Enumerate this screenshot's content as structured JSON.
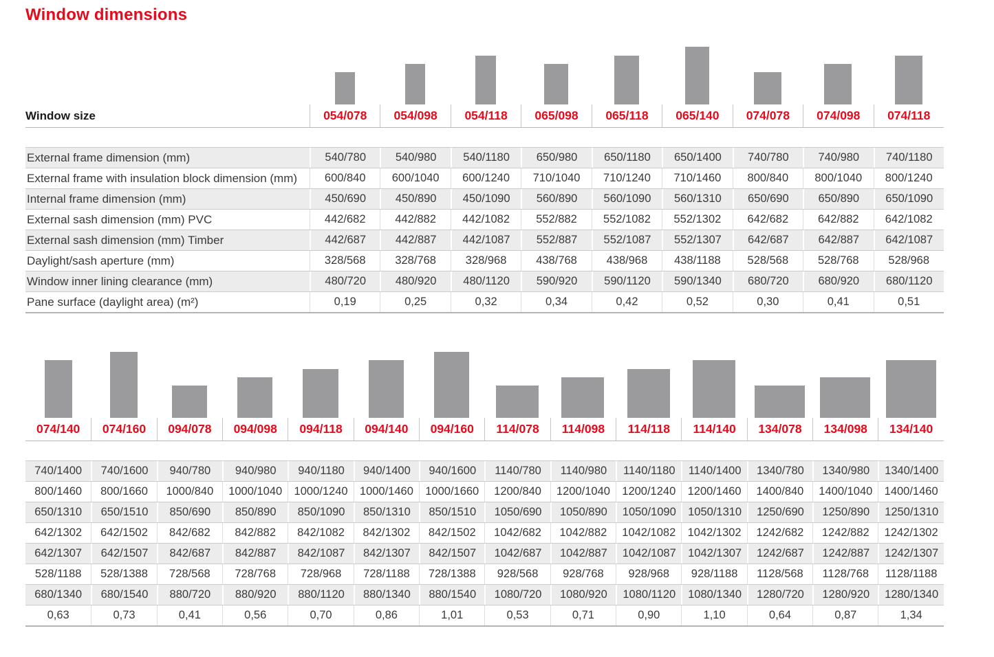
{
  "page_title": "Window dimensions",
  "colors": {
    "accent_red": "#e30b1c",
    "bar_gray": "#9b9b9d",
    "stripe_gray": "#ececec",
    "text_gray": "#3a3a3a",
    "line_gray": "#cbcbcb"
  },
  "row_labels": [
    "External frame dimension (mm)",
    "External frame with insulation block dimension (mm)",
    "Internal frame dimension (mm)",
    "External sash dimension (mm) PVC",
    "External sash dimension (mm) Timber",
    "Daylight/sash aperture (mm)",
    "Window inner lining clearance (mm)",
    "Pane surface (daylight area) (m²)"
  ],
  "sections": [
    {
      "name": "small-sizes",
      "header_label": "Window size",
      "columns": [
        "054/078",
        "054/098",
        "054/118",
        "065/098",
        "065/118",
        "065/140",
        "074/078",
        "074/098",
        "074/118"
      ],
      "rows": [
        [
          "540/780",
          "540/980",
          "540/1180",
          "650/980",
          "650/1180",
          "650/1400",
          "740/780",
          "740/980",
          "740/1180"
        ],
        [
          "600/840",
          "600/1040",
          "600/1240",
          "710/1040",
          "710/1240",
          "710/1460",
          "800/840",
          "800/1040",
          "800/1240"
        ],
        [
          "450/690",
          "450/890",
          "450/1090",
          "560/890",
          "560/1090",
          "560/1310",
          "650/690",
          "650/890",
          "650/1090"
        ],
        [
          "442/682",
          "442/882",
          "442/1082",
          "552/882",
          "552/1082",
          "552/1302",
          "642/682",
          "642/882",
          "642/1082"
        ],
        [
          "442/687",
          "442/887",
          "442/1087",
          "552/887",
          "552/1087",
          "552/1307",
          "642/687",
          "642/887",
          "642/1087"
        ],
        [
          "328/568",
          "328/768",
          "328/968",
          "438/768",
          "438/968",
          "438/1188",
          "528/568",
          "528/768",
          "528/968"
        ],
        [
          "480/720",
          "480/920",
          "480/1120",
          "590/920",
          "590/1120",
          "590/1340",
          "680/720",
          "680/920",
          "680/1120"
        ],
        [
          "0,19",
          "0,25",
          "0,32",
          "0,34",
          "0,42",
          "0,52",
          "0,30",
          "0,41",
          "0,51"
        ]
      ]
    },
    {
      "name": "large-sizes",
      "header_label": "",
      "columns": [
        "074/140",
        "074/160",
        "094/078",
        "094/098",
        "094/118",
        "094/140",
        "094/160",
        "114/078",
        "114/098",
        "114/118",
        "114/140",
        "134/078",
        "134/098",
        "134/140"
      ],
      "rows": [
        [
          "740/1400",
          "740/1600",
          "940/780",
          "940/980",
          "940/1180",
          "940/1400",
          "940/1600",
          "1140/780",
          "1140/980",
          "1140/1180",
          "1140/1400",
          "1340/780",
          "1340/980",
          "1340/1400"
        ],
        [
          "800/1460",
          "800/1660",
          "1000/840",
          "1000/1040",
          "1000/1240",
          "1000/1460",
          "1000/1660",
          "1200/840",
          "1200/1040",
          "1200/1240",
          "1200/1460",
          "1400/840",
          "1400/1040",
          "1400/1460"
        ],
        [
          "650/1310",
          "650/1510",
          "850/690",
          "850/890",
          "850/1090",
          "850/1310",
          "850/1510",
          "1050/690",
          "1050/890",
          "1050/1090",
          "1050/1310",
          "1250/690",
          "1250/890",
          "1250/1310"
        ],
        [
          "642/1302",
          "642/1502",
          "842/682",
          "842/882",
          "842/1082",
          "842/1302",
          "842/1502",
          "1042/682",
          "1042/882",
          "1042/1082",
          "1042/1302",
          "1242/682",
          "1242/882",
          "1242/1302"
        ],
        [
          "642/1307",
          "642/1507",
          "842/687",
          "842/887",
          "842/1087",
          "842/1307",
          "842/1507",
          "1042/687",
          "1042/887",
          "1042/1087",
          "1042/1307",
          "1242/687",
          "1242/887",
          "1242/1307"
        ],
        [
          "528/1188",
          "528/1388",
          "728/568",
          "728/768",
          "728/968",
          "728/1188",
          "728/1388",
          "928/568",
          "928/768",
          "928/968",
          "928/1188",
          "1128/568",
          "1128/768",
          "1128/1188"
        ],
        [
          "680/1340",
          "680/1540",
          "880/720",
          "880/920",
          "880/1120",
          "880/1340",
          "880/1540",
          "1080/720",
          "1080/920",
          "1080/1120",
          "1080/1340",
          "1280/720",
          "1280/920",
          "1280/1340"
        ],
        [
          "0,63",
          "0,73",
          "0,41",
          "0,56",
          "0,70",
          "0,86",
          "1,01",
          "0,53",
          "0,71",
          "0,90",
          "1,10",
          "0,64",
          "0,87",
          "1,34"
        ]
      ]
    }
  ]
}
